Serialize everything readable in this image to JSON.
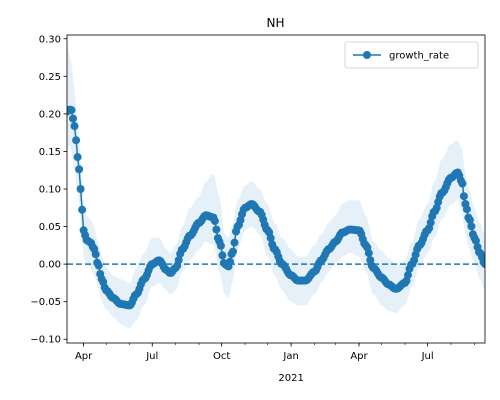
{
  "chart_data": {
    "type": "line",
    "title": "NH",
    "xlabel": "",
    "ylabel": "",
    "x_range": [
      "2020-03-10",
      "2021-09-15"
    ],
    "ylim": [
      -0.105,
      0.305
    ],
    "y_ticks": [
      -0.1,
      -0.05,
      0.0,
      0.05,
      0.1,
      0.15,
      0.2,
      0.25,
      0.3
    ],
    "y_tick_labels": [
      "−0.10",
      "−0.05",
      "0.00",
      "0.05",
      "0.10",
      "0.15",
      "0.20",
      "0.25",
      "0.30"
    ],
    "x_ticks": [
      {
        "date": "2020-04-01",
        "label": "Apr",
        "sublabel": ""
      },
      {
        "date": "2020-07-01",
        "label": "Jul",
        "sublabel": ""
      },
      {
        "date": "2020-10-01",
        "label": "Oct",
        "sublabel": ""
      },
      {
        "date": "2021-01-01",
        "label": "Jan",
        "sublabel": "2021"
      },
      {
        "date": "2021-04-01",
        "label": "Apr",
        "sublabel": ""
      },
      {
        "date": "2021-07-01",
        "label": "Jul",
        "sublabel": ""
      }
    ],
    "reference_line": {
      "y": 0.0,
      "style": "dashed",
      "color": "#1f77b4"
    },
    "legend": {
      "position": "top-right",
      "entries": [
        "growth_rate"
      ]
    },
    "grid": false,
    "series": [
      {
        "name": "growth_rate",
        "color": "#1f77b4",
        "band_color": "#d6e6f4",
        "x": [
          "2020-03-10",
          "2020-03-13",
          "2020-03-16",
          "2020-03-19",
          "2020-03-22",
          "2020-03-25",
          "2020-03-28",
          "2020-04-01",
          "2020-04-05",
          "2020-04-10",
          "2020-04-15",
          "2020-04-20",
          "2020-04-25",
          "2020-05-01",
          "2020-05-10",
          "2020-05-20",
          "2020-06-01",
          "2020-06-10",
          "2020-06-20",
          "2020-07-01",
          "2020-07-10",
          "2020-07-20",
          "2020-07-25",
          "2020-08-01",
          "2020-08-10",
          "2020-08-20",
          "2020-09-01",
          "2020-09-10",
          "2020-09-20",
          "2020-09-28",
          "2020-10-05",
          "2020-10-10",
          "2020-10-15",
          "2020-10-22",
          "2020-11-01",
          "2020-11-10",
          "2020-11-20",
          "2020-12-01",
          "2020-12-10",
          "2020-12-20",
          "2021-01-01",
          "2021-01-10",
          "2021-01-20",
          "2021-02-01",
          "2021-02-10",
          "2021-02-20",
          "2021-03-01",
          "2021-03-10",
          "2021-03-20",
          "2021-04-01",
          "2021-04-10",
          "2021-04-20",
          "2021-05-01",
          "2021-05-10",
          "2021-05-20",
          "2021-06-01",
          "2021-06-10",
          "2021-06-20",
          "2021-07-01",
          "2021-07-10",
          "2021-07-20",
          "2021-08-01",
          "2021-08-10",
          "2021-08-15",
          "2021-08-20",
          "2021-08-25",
          "2021-09-01",
          "2021-09-08",
          "2021-09-15"
        ],
        "y": [
          0.203,
          0.206,
          0.205,
          0.19,
          0.165,
          0.135,
          0.1,
          0.045,
          0.032,
          0.029,
          0.02,
          0.0,
          -0.02,
          -0.035,
          -0.045,
          -0.053,
          -0.055,
          -0.04,
          -0.02,
          0.0,
          0.005,
          -0.008,
          -0.012,
          -0.005,
          0.02,
          0.038,
          0.055,
          0.065,
          0.062,
          0.03,
          0.0,
          -0.003,
          0.015,
          0.05,
          0.075,
          0.08,
          0.07,
          0.045,
          0.02,
          0.0,
          -0.015,
          -0.022,
          -0.022,
          -0.01,
          0.005,
          0.02,
          0.03,
          0.042,
          0.046,
          0.045,
          0.025,
          -0.005,
          -0.018,
          -0.027,
          -0.033,
          -0.025,
          0.0,
          0.025,
          0.045,
          0.07,
          0.095,
          0.115,
          0.122,
          0.11,
          0.08,
          0.06,
          0.035,
          0.015,
          0.0
        ],
        "lower": [
          0.15,
          0.16,
          0.15,
          0.13,
          0.11,
          0.09,
          0.06,
          0.01,
          0.0,
          -0.005,
          -0.015,
          -0.03,
          -0.05,
          -0.06,
          -0.07,
          -0.08,
          -0.085,
          -0.075,
          -0.055,
          -0.03,
          -0.025,
          -0.035,
          -0.04,
          -0.035,
          -0.01,
          0.005,
          0.02,
          0.03,
          0.025,
          -0.01,
          -0.04,
          -0.045,
          -0.025,
          0.02,
          0.045,
          0.05,
          0.04,
          0.01,
          -0.015,
          -0.035,
          -0.05,
          -0.055,
          -0.055,
          -0.04,
          -0.025,
          -0.01,
          0.0,
          0.01,
          0.015,
          0.01,
          -0.01,
          -0.04,
          -0.055,
          -0.062,
          -0.065,
          -0.055,
          -0.03,
          -0.005,
          0.015,
          0.035,
          0.06,
          0.08,
          0.085,
          0.07,
          0.04,
          0.02,
          0.0,
          -0.02,
          -0.035
        ],
        "upper": [
          0.295,
          0.28,
          0.265,
          0.24,
          0.21,
          0.18,
          0.14,
          0.08,
          0.065,
          0.06,
          0.05,
          0.03,
          0.01,
          -0.005,
          -0.015,
          -0.02,
          -0.025,
          -0.005,
          0.015,
          0.035,
          0.035,
          0.02,
          0.015,
          0.025,
          0.05,
          0.075,
          0.09,
          0.11,
          0.12,
          0.09,
          0.04,
          0.035,
          0.05,
          0.085,
          0.105,
          0.11,
          0.1,
          0.08,
          0.055,
          0.035,
          0.02,
          0.01,
          0.01,
          0.025,
          0.04,
          0.055,
          0.065,
          0.08,
          0.085,
          0.085,
          0.065,
          0.03,
          0.018,
          0.008,
          0.0,
          0.005,
          0.03,
          0.06,
          0.08,
          0.11,
          0.14,
          0.16,
          0.165,
          0.155,
          0.12,
          0.1,
          0.075,
          0.055,
          0.04
        ]
      }
    ]
  }
}
